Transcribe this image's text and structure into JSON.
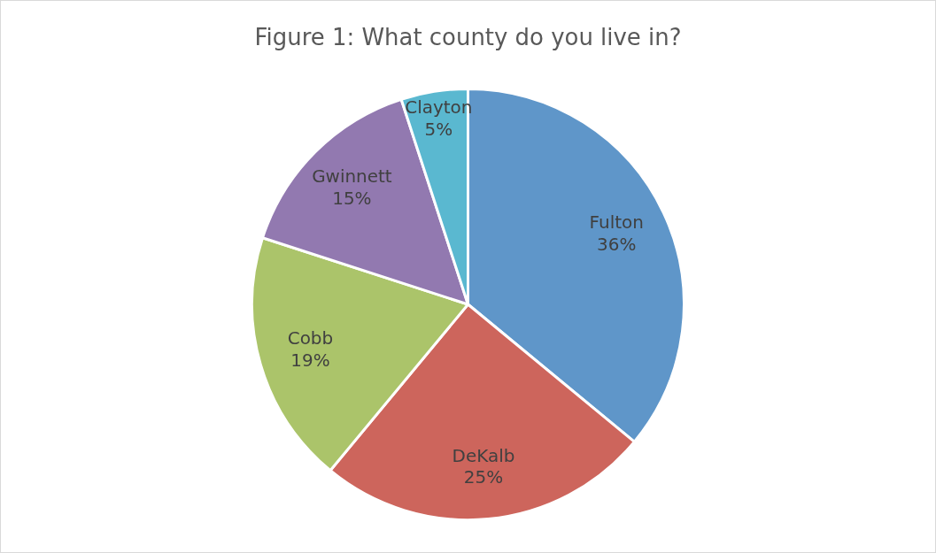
{
  "chart_data": {
    "type": "pie",
    "title": "Figure 1: What county do you live in?",
    "categories": [
      "Fulton",
      "DeKalb",
      "Cobb",
      "Gwinnett",
      "Clayton"
    ],
    "values": [
      36,
      25,
      19,
      15,
      5
    ],
    "value_labels": [
      "36%",
      "25%",
      "19%",
      "15%",
      "5%"
    ],
    "colors": [
      "#5f96c9",
      "#cd655c",
      "#abc46a",
      "#9279b0",
      "#5ab8d0"
    ]
  }
}
